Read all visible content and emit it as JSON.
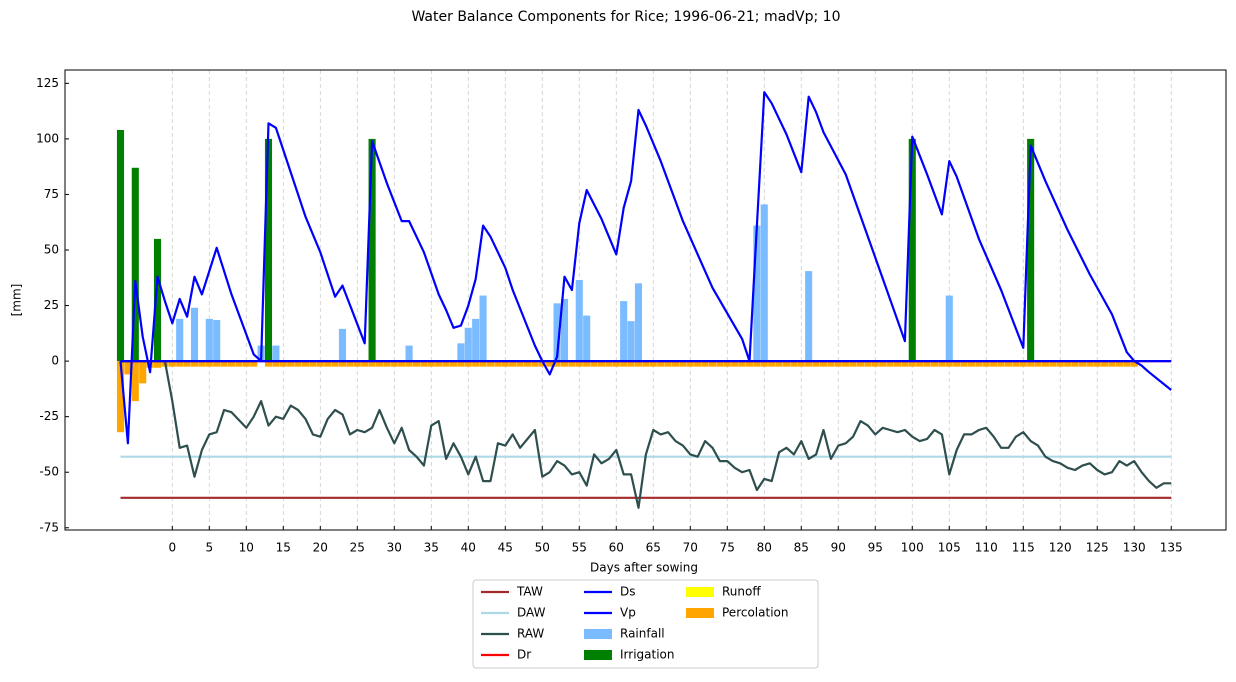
{
  "chart_data": {
    "type": "combo",
    "title": "Water Balance Components for Rice; 1996-06-21; madVp; 10",
    "x_label": "Days after sowing",
    "y_label": "[mm]",
    "xlim": [
      -14.5,
      142.4
    ],
    "ylim": [
      -76,
      131
    ],
    "xticks": [
      0,
      5,
      10,
      15,
      20,
      25,
      30,
      35,
      40,
      45,
      50,
      55,
      60,
      65,
      70,
      75,
      80,
      85,
      90,
      95,
      100,
      105,
      110,
      115,
      120,
      125,
      130,
      135
    ],
    "yticks": [
      -75,
      -50,
      -25,
      0,
      25,
      50,
      75,
      100,
      125
    ],
    "grid": "x",
    "legend": "bottom",
    "series": [
      {
        "name": "TAW",
        "type": "line",
        "color": "#a52a2a",
        "x": [
          -7,
          135
        ],
        "values": [
          -61.5,
          -61.5
        ]
      },
      {
        "name": "DAW",
        "type": "line",
        "color": "#add8e6",
        "x": [
          -7,
          135
        ],
        "values": [
          -43,
          -43
        ]
      },
      {
        "name": "RAW",
        "type": "line",
        "color": "#2f4f4f",
        "x": [
          -7,
          -1,
          0,
          1,
          2,
          3,
          4,
          5,
          6,
          7,
          8,
          10,
          11,
          12,
          13,
          14,
          15,
          16,
          17,
          18,
          19,
          20,
          21,
          22,
          23,
          24,
          25,
          26,
          27,
          28,
          29,
          30,
          31,
          32,
          33,
          34,
          35,
          36,
          37,
          38,
          39,
          40,
          41,
          42,
          43,
          44,
          45,
          46,
          47,
          49,
          50,
          51,
          52,
          53,
          54,
          55,
          56,
          57,
          58,
          59,
          60,
          61,
          62,
          63,
          64,
          65,
          66,
          67,
          68,
          69,
          70,
          71,
          72,
          73,
          74,
          75,
          76,
          77,
          78,
          79,
          80,
          81,
          82,
          83,
          84,
          85,
          86,
          87,
          88,
          89,
          90,
          91,
          92,
          93,
          94,
          95,
          96,
          97,
          98,
          99,
          100,
          101,
          102,
          103,
          104,
          105,
          106,
          107,
          108,
          109,
          110,
          111,
          112,
          113,
          114,
          115,
          116,
          117,
          118,
          119,
          120,
          121,
          122,
          123,
          124,
          125,
          126,
          127,
          128,
          129,
          130,
          131,
          132,
          133,
          134,
          135
        ],
        "values": [
          0,
          0,
          -18,
          -39,
          -38,
          -52,
          -40,
          -33,
          -32,
          -22,
          -23,
          -30,
          -25,
          -18,
          -29,
          -25,
          -26,
          -20,
          -22,
          -26,
          -33,
          -34,
          -26,
          -22,
          -24,
          -33,
          -31,
          -32,
          -30,
          -22,
          -30,
          -37,
          -30,
          -40,
          -43,
          -47,
          -29,
          -27,
          -44,
          -37,
          -43,
          -51,
          -43,
          -54,
          -54,
          -37,
          -38,
          -33,
          -39,
          -31,
          -52,
          -50,
          -45,
          -47,
          -51,
          -50,
          -56,
          -42,
          -46,
          -44,
          -40,
          -51,
          -51,
          -66,
          -42,
          -31,
          -33,
          -32,
          -36,
          -38,
          -42,
          -43,
          -36,
          -39,
          -45,
          -45,
          -48,
          -50,
          -49,
          -58,
          -53,
          -54,
          -41,
          -39,
          -42,
          -36,
          -44,
          -42,
          -31,
          -44,
          -38,
          -37,
          -34,
          -27,
          -29,
          -33,
          -30,
          -31,
          -32,
          -31,
          -34,
          -36,
          -35,
          -31,
          -33,
          -51,
          -40,
          -33,
          -33,
          -31,
          -30,
          -34,
          -39,
          -39,
          -34,
          -32,
          -36,
          -38,
          -43,
          -45,
          -46,
          -48,
          -49,
          -47,
          -46,
          -49,
          -51,
          -50,
          -45,
          -47,
          -45,
          -50,
          -54,
          -57,
          -55,
          -55
        ]
      },
      {
        "name": "Dr",
        "type": "line",
        "color": "#ff0000",
        "x": [
          -7,
          135
        ],
        "values": [
          0,
          0
        ]
      },
      {
        "name": "Ds",
        "type": "line",
        "color": "#0000ff",
        "x": [
          -7,
          130,
          131,
          132,
          135
        ],
        "values": [
          0,
          0,
          -2,
          -5,
          -13
        ]
      },
      {
        "name": "Vp",
        "type": "line",
        "color": "#0000ff",
        "x": [
          -7,
          -6,
          -5,
          -4,
          -3,
          -2,
          -1,
          0,
          1,
          2,
          3,
          4,
          6,
          8,
          10,
          11,
          12,
          13,
          14,
          15,
          18,
          20,
          22,
          23,
          26,
          27,
          29,
          31,
          32,
          34,
          36,
          37,
          38,
          39,
          40,
          41,
          42,
          43,
          45,
          46,
          49,
          50,
          51,
          52,
          53,
          54,
          55,
          56,
          58,
          60,
          61,
          62,
          63,
          64,
          66,
          69,
          73,
          77,
          78,
          79,
          80,
          81,
          83,
          85,
          86,
          87,
          88,
          91,
          94,
          99,
          100,
          102,
          104,
          105,
          106,
          109,
          112,
          115,
          116,
          118,
          121,
          124,
          127,
          129,
          130,
          135
        ],
        "values": [
          0,
          -37,
          36,
          11,
          -5,
          38,
          27,
          17,
          28,
          20,
          38,
          30,
          51,
          30,
          12,
          3,
          0,
          107,
          105,
          95,
          65,
          49,
          29,
          34,
          8,
          99,
          80,
          63,
          63,
          49,
          30,
          23,
          15,
          16,
          25,
          37,
          61,
          56,
          42,
          32,
          7,
          0,
          -6,
          2,
          38,
          32,
          62,
          77,
          64,
          48,
          69,
          81,
          113,
          106,
          90,
          63,
          33,
          10,
          0,
          61,
          121,
          116,
          102,
          85,
          119,
          112,
          103,
          84,
          56,
          9,
          101,
          84,
          66,
          90,
          83,
          55,
          32,
          6,
          97,
          81,
          59,
          39,
          21,
          4,
          0,
          0
        ]
      },
      {
        "name": "Rainfall",
        "type": "bar",
        "color": "#7abcff",
        "x": [
          1,
          3,
          5,
          6,
          12,
          13,
          14,
          23,
          32,
          39,
          40,
          41,
          42,
          52,
          53,
          55,
          56,
          61,
          62,
          63,
          79,
          80,
          86,
          105
        ],
        "values": [
          19,
          24,
          19,
          18.5,
          7,
          7,
          7,
          14.5,
          7,
          8,
          15,
          19,
          29.5,
          26,
          28,
          36.5,
          20.5,
          27,
          18,
          35,
          61,
          70.5,
          40.5,
          29.5
        ]
      },
      {
        "name": "Irrigation",
        "type": "bar",
        "color": "#008000",
        "x": [
          -7,
          -5,
          -2,
          13,
          27,
          100,
          116
        ],
        "values": [
          104,
          87,
          55,
          100,
          100,
          100,
          100
        ]
      },
      {
        "name": "Runoff",
        "type": "bar",
        "color": "#ffff00",
        "x": [],
        "values": []
      },
      {
        "name": "Percolation",
        "type": "bar",
        "color": "#ffa500",
        "x": [
          -7,
          -6,
          -5,
          -4,
          -3,
          -2,
          -1,
          0,
          1,
          2,
          3,
          4,
          5,
          6,
          7,
          8,
          9,
          10,
          11,
          13,
          14,
          15,
          16,
          17,
          18,
          19,
          20,
          21,
          22,
          23,
          24,
          25,
          26,
          27,
          28,
          29,
          30,
          31,
          32,
          33,
          34,
          35,
          36,
          37,
          38,
          39,
          40,
          41,
          42,
          43,
          44,
          45,
          46,
          47,
          48,
          49,
          50,
          51,
          52,
          53,
          54,
          55,
          56,
          57,
          58,
          59,
          60,
          61,
          62,
          63,
          64,
          65,
          66,
          67,
          68,
          69,
          70,
          71,
          72,
          73,
          74,
          75,
          76,
          77,
          78,
          79,
          80,
          81,
          82,
          83,
          84,
          85,
          86,
          87,
          88,
          89,
          90,
          91,
          92,
          93,
          94,
          95,
          96,
          97,
          98,
          99,
          100,
          101,
          102,
          103,
          104,
          105,
          106,
          107,
          108,
          109,
          110,
          111,
          112,
          113,
          114,
          115,
          116,
          117,
          118,
          119,
          120,
          121,
          122,
          123,
          124,
          125,
          126,
          127,
          128,
          129,
          130
        ],
        "values": [
          -32,
          -6,
          -18,
          -10,
          -3,
          -3,
          -2.5,
          -2.5,
          -2.5,
          -2.5,
          -2.5,
          -2.5,
          -2.5,
          -2.5,
          -2.5,
          -2.5,
          -2.5,
          -2.5,
          -2.5,
          -2.5,
          -2.5,
          -2.5,
          -2.5,
          -2.5,
          -2.5,
          -2.5,
          -2.5,
          -2.5,
          -2.5,
          -2.5,
          -2.5,
          -2.5,
          -2.5,
          -2.5,
          -2.5,
          -2.5,
          -2.5,
          -2.5,
          -2.5,
          -2.5,
          -2.5,
          -2.5,
          -2.5,
          -2.5,
          -2.5,
          -2.5,
          -2.5,
          -2.5,
          -2.5,
          -2.5,
          -2.5,
          -2.5,
          -2.5,
          -2.5,
          -2.5,
          -2.5,
          -2.5,
          -2.5,
          -2.5,
          -2.5,
          -2.5,
          -2.5,
          -2.5,
          -2.5,
          -2.5,
          -2.5,
          -2.5,
          -2.5,
          -2.5,
          -2.5,
          -2.5,
          -2.5,
          -2.5,
          -2.5,
          -2.5,
          -2.5,
          -2.5,
          -2.5,
          -2.5,
          -2.5,
          -2.5,
          -2.5,
          -2.5,
          -2.5,
          -2.5,
          -2.5,
          -2.5,
          -2.5,
          -2.5,
          -2.5,
          -2.5,
          -2.5,
          -2.5,
          -2.5,
          -2.5,
          -2.5,
          -2.5,
          -2.5,
          -2.5,
          -2.5,
          -2.5,
          -2.5,
          -2.5,
          -2.5,
          -2.5,
          -2.5,
          -2.5,
          -2.5,
          -2.5,
          -2.5,
          -2.5,
          -2.5,
          -2.5,
          -2.5,
          -2.5,
          -2.5,
          -2.5,
          -2.5,
          -2.5,
          -2.5,
          -2.5,
          -2.5,
          -2.5,
          -2.5,
          -2.5,
          -2.5,
          -2.5,
          -2.5,
          -2.5,
          -2.5,
          -2.5,
          -2.5,
          -2.5,
          -2.5,
          -2.5,
          -2.5,
          -2.5
        ]
      }
    ]
  }
}
